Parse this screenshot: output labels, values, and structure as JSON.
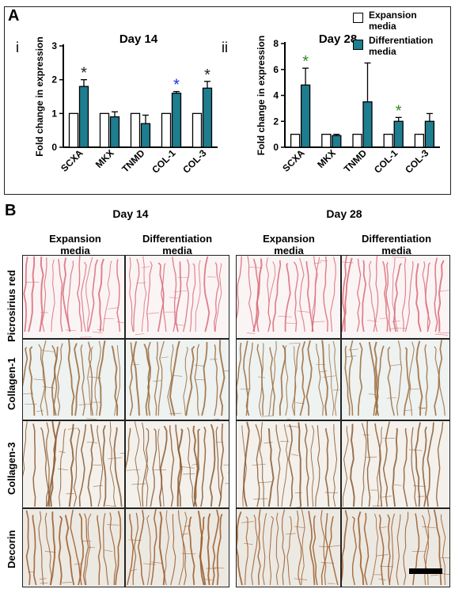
{
  "panel_a": {
    "letter": "A",
    "legend": {
      "expansion": "Expansion\nmedia",
      "differentiation": "Differentiation\nmedia",
      "colors": {
        "expansion": "#ffffff",
        "differentiation": "#1e7d8f"
      }
    }
  },
  "panel_b": {
    "letter": "B",
    "days": [
      "Day 14",
      "Day 28"
    ],
    "conditions": [
      "Expansion\nmedia",
      "Differentiation\nmedia"
    ],
    "rows": [
      {
        "label": "Picrosirius red",
        "stain": "#d86a78",
        "bg": "#fbf4f4"
      },
      {
        "label": "Collagen-1",
        "stain": "#9a6a3a",
        "bg": "#eef2f1"
      },
      {
        "label": "Collagen-3",
        "stain": "#8a5a32",
        "bg": "#f4f1ec"
      },
      {
        "label": "Decorin",
        "stain": "#9b5a28",
        "bg": "#ece9e3"
      }
    ]
  },
  "chart_data": [
    {
      "type": "bar",
      "panel": "i",
      "title": "Day 14",
      "ylabel": "Fold change in expression",
      "ylim": [
        0,
        3
      ],
      "yticks": [
        0,
        1,
        2,
        3
      ],
      "categories": [
        "SCXA",
        "MKX",
        "TNMD",
        "COL-1",
        "COL-3"
      ],
      "series": [
        {
          "name": "Expansion media",
          "values": [
            1,
            1,
            1,
            1,
            1
          ],
          "errors": [
            0,
            0,
            0,
            0,
            0
          ]
        },
        {
          "name": "Differentiation media",
          "values": [
            1.8,
            0.9,
            0.7,
            1.6,
            1.75
          ],
          "errors": [
            0.2,
            0.15,
            0.25,
            0.05,
            0.2
          ]
        }
      ],
      "significance": [
        {
          "category": "SCXA",
          "symbol": "*",
          "color": "#222222"
        },
        {
          "category": "COL-1",
          "symbol": "*",
          "color": "#1a2fe0"
        },
        {
          "category": "COL-3",
          "symbol": "*",
          "color": "#222222"
        }
      ]
    },
    {
      "type": "bar",
      "panel": "ii",
      "title": "Day 28",
      "ylabel": "Fold change in expression",
      "ylim": [
        0,
        8
      ],
      "yticks": [
        0,
        2,
        4,
        6,
        8
      ],
      "categories": [
        "SCXA",
        "MKX",
        "TNMD",
        "COL-1",
        "COL-3"
      ],
      "series": [
        {
          "name": "Expansion media",
          "values": [
            1,
            1,
            1,
            1,
            1
          ],
          "errors": [
            0,
            0,
            0,
            0,
            0
          ]
        },
        {
          "name": "Differentiation media",
          "values": [
            4.8,
            0.9,
            3.5,
            2.0,
            2.0
          ],
          "errors": [
            1.3,
            0.1,
            3.0,
            0.3,
            0.6
          ]
        }
      ],
      "significance": [
        {
          "category": "SCXA",
          "symbol": "*",
          "color": "#2e8b1e"
        },
        {
          "category": "COL-1",
          "symbol": "*",
          "color": "#2e8b1e"
        }
      ]
    }
  ]
}
